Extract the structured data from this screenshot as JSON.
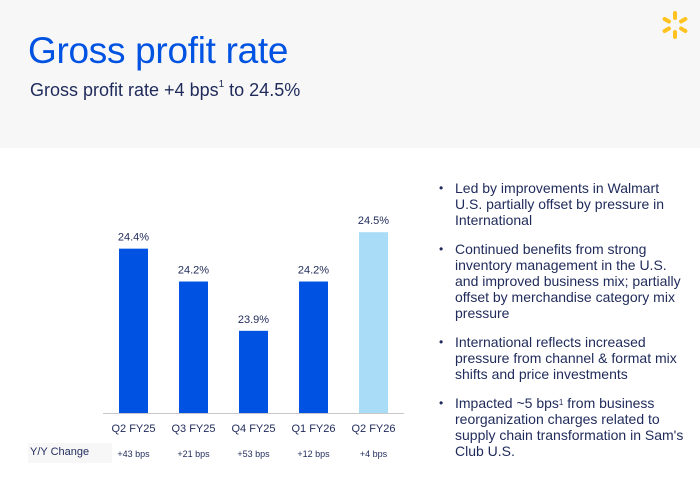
{
  "header": {
    "title": "Gross profit rate",
    "subtitle_pre": "Gross profit rate +4 bps",
    "subtitle_sup": "1",
    "subtitle_post": " to 24.5%",
    "logo_icon": "spark-icon"
  },
  "colors": {
    "title": "#0053e2",
    "bar_primary": "#0053e2",
    "bar_highlight": "#a9ddf7",
    "text_dark": "#1f2a5a",
    "logo": "#ffc220"
  },
  "chart_data": {
    "type": "bar",
    "title": "Gross profit rate",
    "categories": [
      "Q2 FY25",
      "Q3 FY25",
      "Q4 FY25",
      "Q1 FY26",
      "Q2 FY26"
    ],
    "values": [
      24.4,
      24.2,
      23.9,
      24.2,
      24.5
    ],
    "data_labels": [
      "24.4%",
      "24.2%",
      "23.9%",
      "24.2%",
      "24.5%"
    ],
    "highlight_index": 4,
    "xlabel": "",
    "ylabel": "",
    "ylim": [
      23.4,
      24.55
    ],
    "grid": false,
    "yoy_change": {
      "label": "Y/Y Change",
      "values": [
        "+43 bps",
        "+21 bps",
        "+53 bps",
        "+12 bps",
        "+4 bps"
      ]
    }
  },
  "bullets": [
    {
      "text": "Led by improvements in Walmart U.S. partially offset by pressure in International"
    },
    {
      "text": "Continued benefits from strong inventory management in the U.S. and improved business mix; partially offset by merchandise category mix pressure"
    },
    {
      "text": "International reflects increased pressure from channel & format mix shifts and price investments"
    },
    {
      "text_pre": "Impacted ~5 bps",
      "sup": "1",
      "text_post": " from business reorganization charges related to supply chain transformation in Sam's Club U.S."
    }
  ],
  "bullet_glyph": "•"
}
